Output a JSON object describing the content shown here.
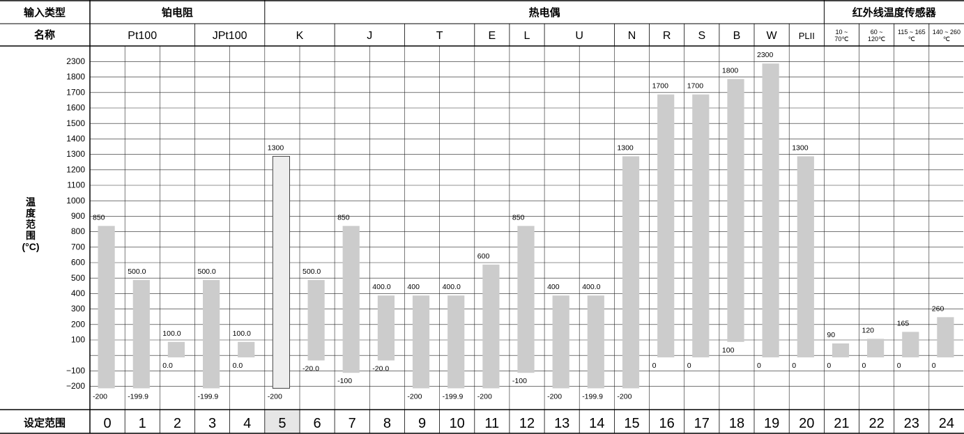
{
  "header": {
    "row1_label": "输入类型",
    "row2_label": "名称",
    "footer_label": "设定范围",
    "yaxis_label": [
      "温",
      "度",
      "范",
      "围",
      "(°C)"
    ],
    "groups": [
      {
        "label": "铂电阻",
        "from": 0,
        "to": 4
      },
      {
        "label": "热电偶",
        "from": 5,
        "to": 20
      },
      {
        "label": "红外线温度传感器",
        "from": 21,
        "to": 24
      }
    ],
    "names": [
      {
        "label": "Pt100",
        "from": 0,
        "to": 2,
        "size": "big"
      },
      {
        "label": "JPt100",
        "from": 3,
        "to": 4,
        "size": "big"
      },
      {
        "label": "K",
        "from": 5,
        "to": 6,
        "size": "big"
      },
      {
        "label": "J",
        "from": 7,
        "to": 8,
        "size": "big"
      },
      {
        "label": "T",
        "from": 9,
        "to": 10,
        "size": "big"
      },
      {
        "label": "E",
        "from": 11,
        "to": 11,
        "size": "big"
      },
      {
        "label": "L",
        "from": 12,
        "to": 12,
        "size": "big"
      },
      {
        "label": "U",
        "from": 13,
        "to": 14,
        "size": "big"
      },
      {
        "label": "N",
        "from": 15,
        "to": 15,
        "size": "big"
      },
      {
        "label": "R",
        "from": 16,
        "to": 16,
        "size": "big"
      },
      {
        "label": "S",
        "from": 17,
        "to": 17,
        "size": "big"
      },
      {
        "label": "B",
        "from": 18,
        "to": 18,
        "size": "big"
      },
      {
        "label": "W",
        "from": 19,
        "to": 19,
        "size": "big"
      },
      {
        "label": "PLII",
        "from": 20,
        "to": 20,
        "size": "mid"
      },
      {
        "label": [
          "10 ~",
          "70℃"
        ],
        "from": 21,
        "to": 21,
        "size": "small"
      },
      {
        "label": [
          "60 ~",
          "120℃"
        ],
        "from": 22,
        "to": 22,
        "size": "small"
      },
      {
        "label": [
          "115 ~ 165",
          "℃"
        ],
        "from": 23,
        "to": 23,
        "size": "small"
      },
      {
        "label": [
          "140 ~ 260",
          "℃"
        ],
        "from": 24,
        "to": 24,
        "size": "small"
      }
    ]
  },
  "chart_data": {
    "type": "bar",
    "y_ticks": [
      "2300",
      "1800",
      "1700",
      "1600",
      "1500",
      "1400",
      "1300",
      "1200",
      "1100",
      "1000",
      "900",
      "800",
      "700",
      "600",
      "500",
      "400",
      "300",
      "200",
      "100",
      "",
      "−100",
      "−200"
    ],
    "setting_codes": [
      "0",
      "1",
      "2",
      "3",
      "4",
      "5",
      "6",
      "7",
      "8",
      "9",
      "10",
      "11",
      "12",
      "13",
      "14",
      "15",
      "16",
      "17",
      "18",
      "19",
      "20",
      "21",
      "22",
      "23",
      "24"
    ],
    "highlight_index": 5,
    "ranges": [
      {
        "code": "0",
        "low": -200,
        "high": 850,
        "low_label": "-200",
        "high_label": "850"
      },
      {
        "code": "1",
        "low": -199.9,
        "high": 500,
        "low_label": "-199.9",
        "high_label": "500.0"
      },
      {
        "code": "2",
        "low": 0,
        "high": 100,
        "low_label": "0.0",
        "high_label": "100.0"
      },
      {
        "code": "3",
        "low": -199.9,
        "high": 500,
        "low_label": "-199.9",
        "high_label": "500.0"
      },
      {
        "code": "4",
        "low": 0,
        "high": 100,
        "low_label": "0.0",
        "high_label": "100.0"
      },
      {
        "code": "5",
        "low": -200,
        "high": 1300,
        "low_label": "-200",
        "high_label": "1300"
      },
      {
        "code": "6",
        "low": -20,
        "high": 500,
        "low_label": "-20.0",
        "high_label": "500.0"
      },
      {
        "code": "7",
        "low": -100,
        "high": 850,
        "low_label": "-100",
        "high_label": "850"
      },
      {
        "code": "8",
        "low": -20,
        "high": 400,
        "low_label": "-20.0",
        "high_label": "400.0"
      },
      {
        "code": "9",
        "low": -200,
        "high": 400,
        "low_label": "-200",
        "high_label": "400"
      },
      {
        "code": "10",
        "low": -199.9,
        "high": 400,
        "low_label": "-199.9",
        "high_label": "400.0"
      },
      {
        "code": "11",
        "low": -200,
        "high": 600,
        "low_label": "-200",
        "high_label": "600"
      },
      {
        "code": "12",
        "low": -100,
        "high": 850,
        "low_label": "-100",
        "high_label": "850"
      },
      {
        "code": "13",
        "low": -200,
        "high": 400,
        "low_label": "-200",
        "high_label": "400"
      },
      {
        "code": "14",
        "low": -199.9,
        "high": 400,
        "low_label": "-199.9",
        "high_label": "400.0"
      },
      {
        "code": "15",
        "low": -200,
        "high": 1300,
        "low_label": "-200",
        "high_label": "1300"
      },
      {
        "code": "16",
        "low": 0,
        "high": 1700,
        "low_label": "0",
        "high_label": "1700"
      },
      {
        "code": "17",
        "low": 0,
        "high": 1700,
        "low_label": "0",
        "high_label": "1700"
      },
      {
        "code": "18",
        "low": 100,
        "high": 1800,
        "low_label": "100",
        "high_label": "1800"
      },
      {
        "code": "19",
        "low": 0,
        "high": 2300,
        "low_label": "0",
        "high_label": "2300"
      },
      {
        "code": "20",
        "low": 0,
        "high": 1300,
        "low_label": "0",
        "high_label": "1300"
      },
      {
        "code": "21",
        "low": 0,
        "high": 90,
        "low_label": "0",
        "high_label": "90"
      },
      {
        "code": "22",
        "low": 0,
        "high": 120,
        "low_label": "0",
        "high_label": "120"
      },
      {
        "code": "23",
        "low": 0,
        "high": 165,
        "low_label": "0",
        "high_label": "165"
      },
      {
        "code": "24",
        "low": 0,
        "high": 260,
        "low_label": "0",
        "high_label": "260"
      }
    ],
    "colors": {
      "bar": "#cccccc",
      "highlight_bar": "#eeeeee",
      "highlight_border": "#444444",
      "grid": "#222222"
    }
  }
}
